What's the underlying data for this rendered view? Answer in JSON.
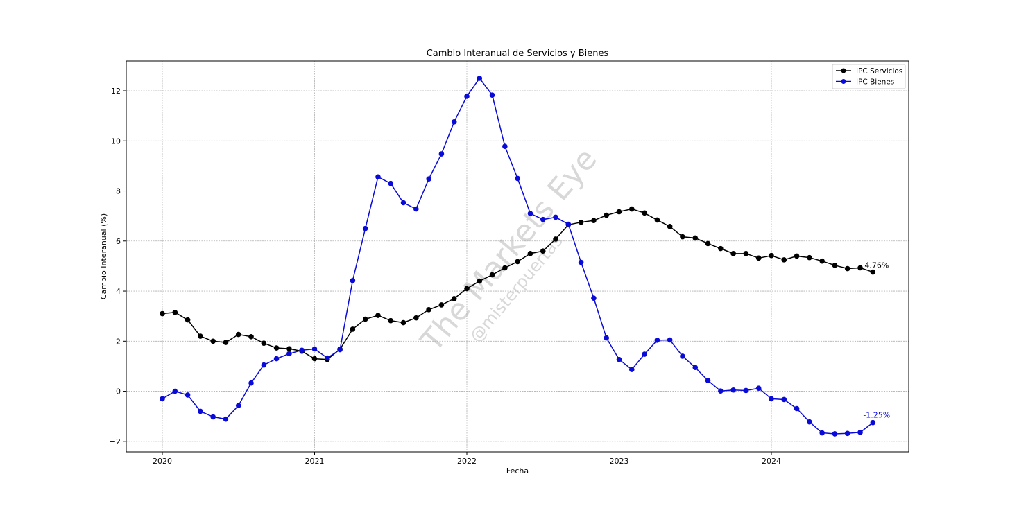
{
  "chart_data": {
    "type": "line",
    "title": "Cambio Interanual de Servicios y Bienes",
    "xlabel": "Fecha",
    "ylabel": "Cambio Interanual (%)",
    "x_start": "2020-01",
    "x_frequency": "monthly",
    "x_ticks": [
      "2020",
      "2021",
      "2022",
      "2023",
      "2024"
    ],
    "y_ticks": [
      -2,
      0,
      2,
      4,
      6,
      8,
      10,
      12
    ],
    "ylim": [
      -2.42,
      13.19
    ],
    "xlim": [
      "2019-10",
      "2024-11"
    ],
    "grid": true,
    "legend_position": "top-right",
    "series": [
      {
        "name": "IPC Servicios",
        "color": "#000000",
        "values": [
          3.1,
          3.15,
          2.85,
          2.2,
          2.0,
          1.95,
          2.27,
          2.18,
          1.92,
          1.73,
          1.7,
          1.6,
          1.3,
          1.27,
          1.68,
          2.48,
          2.88,
          3.03,
          2.82,
          2.74,
          2.93,
          3.26,
          3.45,
          3.7,
          4.1,
          4.4,
          4.65,
          4.93,
          5.18,
          5.5,
          5.6,
          6.08,
          6.65,
          6.75,
          6.82,
          7.03,
          7.17,
          7.28,
          7.12,
          6.84,
          6.58,
          6.17,
          6.12,
          5.9,
          5.7,
          5.5,
          5.5,
          5.32,
          5.42,
          5.25,
          5.4,
          5.34,
          5.2,
          5.03,
          4.9,
          4.93,
          4.76
        ],
        "last_label": "4.76%"
      },
      {
        "name": "IPC Bienes",
        "color": "#0a0ad8",
        "values": [
          -0.3,
          0.0,
          -0.15,
          -0.8,
          -1.02,
          -1.11,
          -0.57,
          0.33,
          1.05,
          1.3,
          1.5,
          1.64,
          1.69,
          1.33,
          1.66,
          4.42,
          6.5,
          8.56,
          8.3,
          7.53,
          7.28,
          8.48,
          9.48,
          10.76,
          11.78,
          12.5,
          11.83,
          9.78,
          8.5,
          7.1,
          6.86,
          6.95,
          6.67,
          5.15,
          3.72,
          2.13,
          1.27,
          0.87,
          1.48,
          2.04,
          2.05,
          1.4,
          0.95,
          0.43,
          0.01,
          0.05,
          0.03,
          0.12,
          -0.3,
          -0.33,
          -0.69,
          -1.22,
          -1.66,
          -1.7,
          -1.68,
          -1.64,
          -1.25
        ],
        "last_label": "-1.25%"
      }
    ]
  },
  "watermark": {
    "main": "The Markets Eye",
    "handle": "@misterpuertas"
  }
}
